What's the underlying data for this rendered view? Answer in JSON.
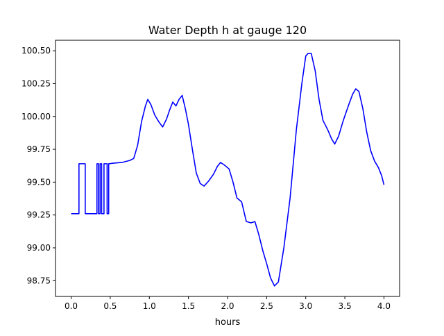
{
  "chart_data": {
    "type": "line",
    "title": "Water Depth h at gauge 120",
    "xlabel": "hours",
    "ylabel": "",
    "xlim": [
      -0.2,
      4.2
    ],
    "ylim": [
      98.63,
      100.58
    ],
    "xticks": [
      0.0,
      0.5,
      1.0,
      1.5,
      2.0,
      2.5,
      3.0,
      3.5,
      4.0
    ],
    "xtick_labels": [
      "0.0",
      "0.5",
      "1.0",
      "1.5",
      "2.0",
      "2.5",
      "3.0",
      "3.5",
      "4.0"
    ],
    "yticks": [
      98.75,
      99.0,
      99.25,
      99.5,
      99.75,
      100.0,
      100.25,
      100.5
    ],
    "ytick_labels": [
      "98.75",
      "99.00",
      "99.25",
      "99.50",
      "99.75",
      "100.00",
      "100.25",
      "100.50"
    ],
    "grid": false,
    "series": [
      {
        "color": "#0000ff",
        "points": [
          [
            0.0,
            99.26
          ],
          [
            0.1,
            99.26
          ],
          [
            0.1,
            99.64
          ],
          [
            0.18,
            99.64
          ],
          [
            0.18,
            99.26
          ],
          [
            0.33,
            99.26
          ],
          [
            0.33,
            99.64
          ],
          [
            0.35,
            99.64
          ],
          [
            0.35,
            99.26
          ],
          [
            0.37,
            99.26
          ],
          [
            0.37,
            99.64
          ],
          [
            0.39,
            99.64
          ],
          [
            0.39,
            99.26
          ],
          [
            0.42,
            99.26
          ],
          [
            0.42,
            99.64
          ],
          [
            0.46,
            99.64
          ],
          [
            0.46,
            99.26
          ],
          [
            0.48,
            99.26
          ],
          [
            0.48,
            99.64
          ],
          [
            0.55,
            99.645
          ],
          [
            0.65,
            99.65
          ],
          [
            0.75,
            99.665
          ],
          [
            0.8,
            99.68
          ],
          [
            0.85,
            99.78
          ],
          [
            0.9,
            99.96
          ],
          [
            0.95,
            100.08
          ],
          [
            0.98,
            100.13
          ],
          [
            1.02,
            100.09
          ],
          [
            1.07,
            100.01
          ],
          [
            1.12,
            99.96
          ],
          [
            1.17,
            99.92
          ],
          [
            1.22,
            99.98
          ],
          [
            1.26,
            100.05
          ],
          [
            1.3,
            100.11
          ],
          [
            1.34,
            100.08
          ],
          [
            1.38,
            100.13
          ],
          [
            1.42,
            100.16
          ],
          [
            1.46,
            100.06
          ],
          [
            1.5,
            99.94
          ],
          [
            1.55,
            99.75
          ],
          [
            1.6,
            99.57
          ],
          [
            1.65,
            99.49
          ],
          [
            1.7,
            99.47
          ],
          [
            1.76,
            99.51
          ],
          [
            1.82,
            99.56
          ],
          [
            1.87,
            99.62
          ],
          [
            1.91,
            99.65
          ],
          [
            1.96,
            99.63
          ],
          [
            2.02,
            99.6
          ],
          [
            2.07,
            99.5
          ],
          [
            2.12,
            99.38
          ],
          [
            2.18,
            99.35
          ],
          [
            2.24,
            99.2
          ],
          [
            2.3,
            99.19
          ],
          [
            2.35,
            99.2
          ],
          [
            2.4,
            99.1
          ],
          [
            2.45,
            98.98
          ],
          [
            2.5,
            98.88
          ],
          [
            2.55,
            98.77
          ],
          [
            2.6,
            98.71
          ],
          [
            2.65,
            98.74
          ],
          [
            2.72,
            99.0
          ],
          [
            2.8,
            99.38
          ],
          [
            2.88,
            99.9
          ],
          [
            2.95,
            100.25
          ],
          [
            3.0,
            100.46
          ],
          [
            3.03,
            100.48
          ],
          [
            3.07,
            100.48
          ],
          [
            3.12,
            100.35
          ],
          [
            3.17,
            100.13
          ],
          [
            3.22,
            99.97
          ],
          [
            3.28,
            99.9
          ],
          [
            3.33,
            99.83
          ],
          [
            3.37,
            99.79
          ],
          [
            3.42,
            99.85
          ],
          [
            3.48,
            99.97
          ],
          [
            3.55,
            100.09
          ],
          [
            3.6,
            100.17
          ],
          [
            3.64,
            100.21
          ],
          [
            3.68,
            100.19
          ],
          [
            3.73,
            100.06
          ],
          [
            3.78,
            99.88
          ],
          [
            3.83,
            99.74
          ],
          [
            3.88,
            99.66
          ],
          [
            3.93,
            99.61
          ],
          [
            3.97,
            99.55
          ],
          [
            4.0,
            99.48
          ]
        ]
      }
    ]
  }
}
